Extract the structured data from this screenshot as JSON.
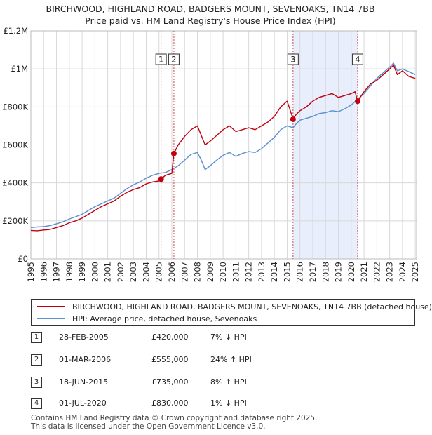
{
  "title_line1": "BIRCHWOOD, HIGHLAND ROAD, BADGERS MOUNT, SEVENOAKS, TN14 7BB",
  "title_line2": "Price paid vs. HM Land Registry's House Price Index (HPI)",
  "colors": {
    "property": "#c0000f",
    "hpi": "#5b8fd1",
    "shade": "#e8eefb",
    "marker_line": "#d04a4a"
  },
  "chart_data": {
    "type": "line",
    "title": "Price paid vs. HM Land Registry's House Price Index (HPI)",
    "xlabel": "",
    "ylabel": "",
    "xlim": [
      1995.0,
      2025.1
    ],
    "ylim": [
      0,
      1200000
    ],
    "x_ticks": [
      "1995",
      "1996",
      "1997",
      "1998",
      "1999",
      "2000",
      "2001",
      "2002",
      "2003",
      "2004",
      "2005",
      "2006",
      "2007",
      "2008",
      "2009",
      "2010",
      "2011",
      "2012",
      "2013",
      "2014",
      "2015",
      "2016",
      "2017",
      "2018",
      "2019",
      "2020",
      "2021",
      "2022",
      "2023",
      "2024",
      "2025"
    ],
    "y_ticks": [
      {
        "value": 0,
        "label": "£0"
      },
      {
        "value": 200000,
        "label": "£200K"
      },
      {
        "value": 400000,
        "label": "£400K"
      },
      {
        "value": 600000,
        "label": "£600K"
      },
      {
        "value": 800000,
        "label": "£800K"
      },
      {
        "value": 1000000,
        "label": "£1M"
      },
      {
        "value": 1200000,
        "label": "£1.2M"
      }
    ],
    "grid": true,
    "shaded_ranges": [
      [
        2015.46,
        2020.5
      ]
    ],
    "series": [
      {
        "name": "BIRCHWOOD, HIGHLAND ROAD, BADGERS MOUNT, SEVENOAKS, TN14 7BB (detached house)",
        "x": [
          1995.0,
          1995.5,
          1996.0,
          1996.5,
          1997.0,
          1997.5,
          1998.0,
          1998.5,
          1999.0,
          1999.5,
          2000.0,
          2000.5,
          2001.0,
          2001.5,
          2002.0,
          2002.5,
          2003.0,
          2003.5,
          2004.0,
          2004.5,
          2005.0,
          2005.16,
          2005.5,
          2006.0,
          2006.16,
          2006.5,
          2007.0,
          2007.5,
          2008.0,
          2008.3,
          2008.6,
          2009.0,
          2009.5,
          2010.0,
          2010.5,
          2011.0,
          2011.5,
          2012.0,
          2012.5,
          2013.0,
          2013.5,
          2014.0,
          2014.5,
          2015.0,
          2015.2,
          2015.46,
          2015.7,
          2016.0,
          2016.5,
          2017.0,
          2017.5,
          2018.0,
          2018.5,
          2019.0,
          2019.5,
          2020.0,
          2020.3,
          2020.5,
          2020.7,
          2021.0,
          2021.5,
          2022.0,
          2022.5,
          2023.0,
          2023.3,
          2023.6,
          2024.0,
          2024.5,
          2025.0
        ],
        "values": [
          150000,
          148000,
          152000,
          155000,
          165000,
          175000,
          190000,
          200000,
          215000,
          235000,
          255000,
          275000,
          290000,
          305000,
          330000,
          350000,
          365000,
          375000,
          395000,
          405000,
          410000,
          420000,
          440000,
          450000,
          555000,
          600000,
          645000,
          680000,
          700000,
          650000,
          600000,
          620000,
          650000,
          680000,
          700000,
          670000,
          680000,
          690000,
          680000,
          700000,
          720000,
          750000,
          800000,
          830000,
          790000,
          735000,
          760000,
          780000,
          800000,
          830000,
          850000,
          860000,
          870000,
          850000,
          860000,
          870000,
          880000,
          830000,
          850000,
          880000,
          920000,
          940000,
          970000,
          1000000,
          1020000,
          970000,
          990000,
          960000,
          950000
        ]
      },
      {
        "name": "HPI: Average price, detached house, Sevenoaks",
        "x": [
          1995.0,
          1995.5,
          1996.0,
          1996.5,
          1997.0,
          1997.5,
          1998.0,
          1998.5,
          1999.0,
          1999.5,
          2000.0,
          2000.5,
          2001.0,
          2001.5,
          2002.0,
          2002.5,
          2003.0,
          2003.5,
          2004.0,
          2004.5,
          2005.0,
          2005.5,
          2006.0,
          2006.5,
          2007.0,
          2007.5,
          2008.0,
          2008.3,
          2008.6,
          2009.0,
          2009.5,
          2010.0,
          2010.5,
          2011.0,
          2011.5,
          2012.0,
          2012.5,
          2013.0,
          2013.5,
          2014.0,
          2014.5,
          2015.0,
          2015.46,
          2015.7,
          2016.0,
          2016.5,
          2017.0,
          2017.5,
          2018.0,
          2018.5,
          2019.0,
          2019.5,
          2020.0,
          2020.5,
          2021.0,
          2021.5,
          2022.0,
          2022.5,
          2023.0,
          2023.3,
          2023.6,
          2024.0,
          2024.5,
          2025.0
        ],
        "values": [
          165000,
          168000,
          170000,
          175000,
          185000,
          195000,
          210000,
          222000,
          235000,
          255000,
          275000,
          290000,
          305000,
          320000,
          345000,
          370000,
          390000,
          405000,
          425000,
          440000,
          450000,
          455000,
          470000,
          490000,
          520000,
          550000,
          560000,
          520000,
          470000,
          490000,
          520000,
          545000,
          560000,
          540000,
          555000,
          565000,
          560000,
          580000,
          610000,
          640000,
          680000,
          700000,
          690000,
          710000,
          730000,
          740000,
          750000,
          765000,
          770000,
          780000,
          775000,
          790000,
          810000,
          840000,
          870000,
          910000,
          950000,
          980000,
          1010000,
          1030000,
          990000,
          1000000,
          985000,
          970000
        ]
      }
    ],
    "transactions": [
      {
        "n": "1",
        "x": 2005.16,
        "date": "28-FEB-2005",
        "price": 420000,
        "price_label": "£420,000",
        "hpi": "7% ↓ HPI"
      },
      {
        "n": "2",
        "x": 2006.16,
        "date": "01-MAR-2006",
        "price": 555000,
        "price_label": "£555,000",
        "hpi": "24% ↑ HPI"
      },
      {
        "n": "3",
        "x": 2015.46,
        "date": "18-JUN-2015",
        "price": 735000,
        "price_label": "£735,000",
        "hpi": "8% ↑ HPI"
      },
      {
        "n": "4",
        "x": 2020.5,
        "date": "01-JUL-2020",
        "price": 830000,
        "price_label": "£830,000",
        "hpi": "1% ↓ HPI"
      }
    ]
  },
  "legend": {
    "property_label": "BIRCHWOOD, HIGHLAND ROAD, BADGERS MOUNT, SEVENOAKS, TN14 7BB (detached house)",
    "hpi_label": "HPI: Average price, detached house, Sevenoaks"
  },
  "footer": {
    "line1": "Contains HM Land Registry data © Crown copyright and database right 2025.",
    "line2": "This data is licensed under the Open Government Licence v3.0."
  }
}
